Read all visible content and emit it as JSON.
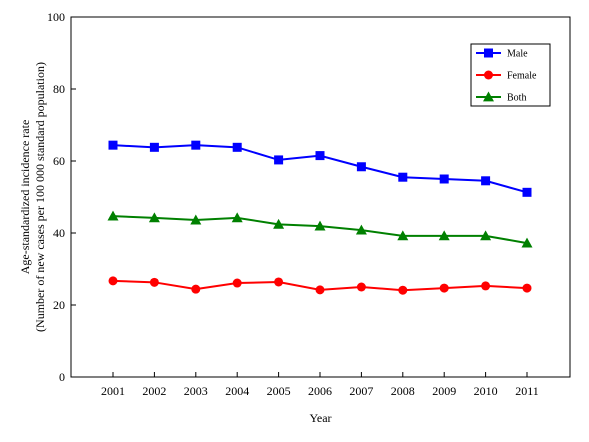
{
  "chart_data": {
    "type": "line",
    "title": "",
    "xlabel": "Year",
    "ylabel_line1": "Age-standardized incidence rate",
    "ylabel_line2": "(Number of new cases per 100 000 standard population)",
    "ylim": [
      0,
      100
    ],
    "yticks": [
      0,
      20,
      40,
      60,
      80,
      100
    ],
    "grid": false,
    "legend_position": "top-right",
    "categories": [
      "2001",
      "2002",
      "2003",
      "2004",
      "2005",
      "2006",
      "2007",
      "2008",
      "2009",
      "2010",
      "2011"
    ],
    "series": [
      {
        "name": "Male",
        "color": "#0000FF",
        "marker": "square",
        "values": [
          64.4,
          63.8,
          64.4,
          63.8,
          60.3,
          61.5,
          58.4,
          55.5,
          55.0,
          54.5,
          51.3
        ]
      },
      {
        "name": "Female",
        "color": "#FF0000",
        "marker": "circle",
        "values": [
          26.7,
          26.3,
          24.4,
          26.1,
          26.4,
          24.2,
          25.0,
          24.1,
          24.7,
          25.3,
          24.7
        ]
      },
      {
        "name": "Both",
        "color": "#008000",
        "marker": "triangle",
        "values": [
          44.7,
          44.2,
          43.6,
          44.2,
          42.4,
          41.9,
          40.8,
          39.2,
          39.2,
          39.2,
          37.2
        ]
      }
    ]
  }
}
